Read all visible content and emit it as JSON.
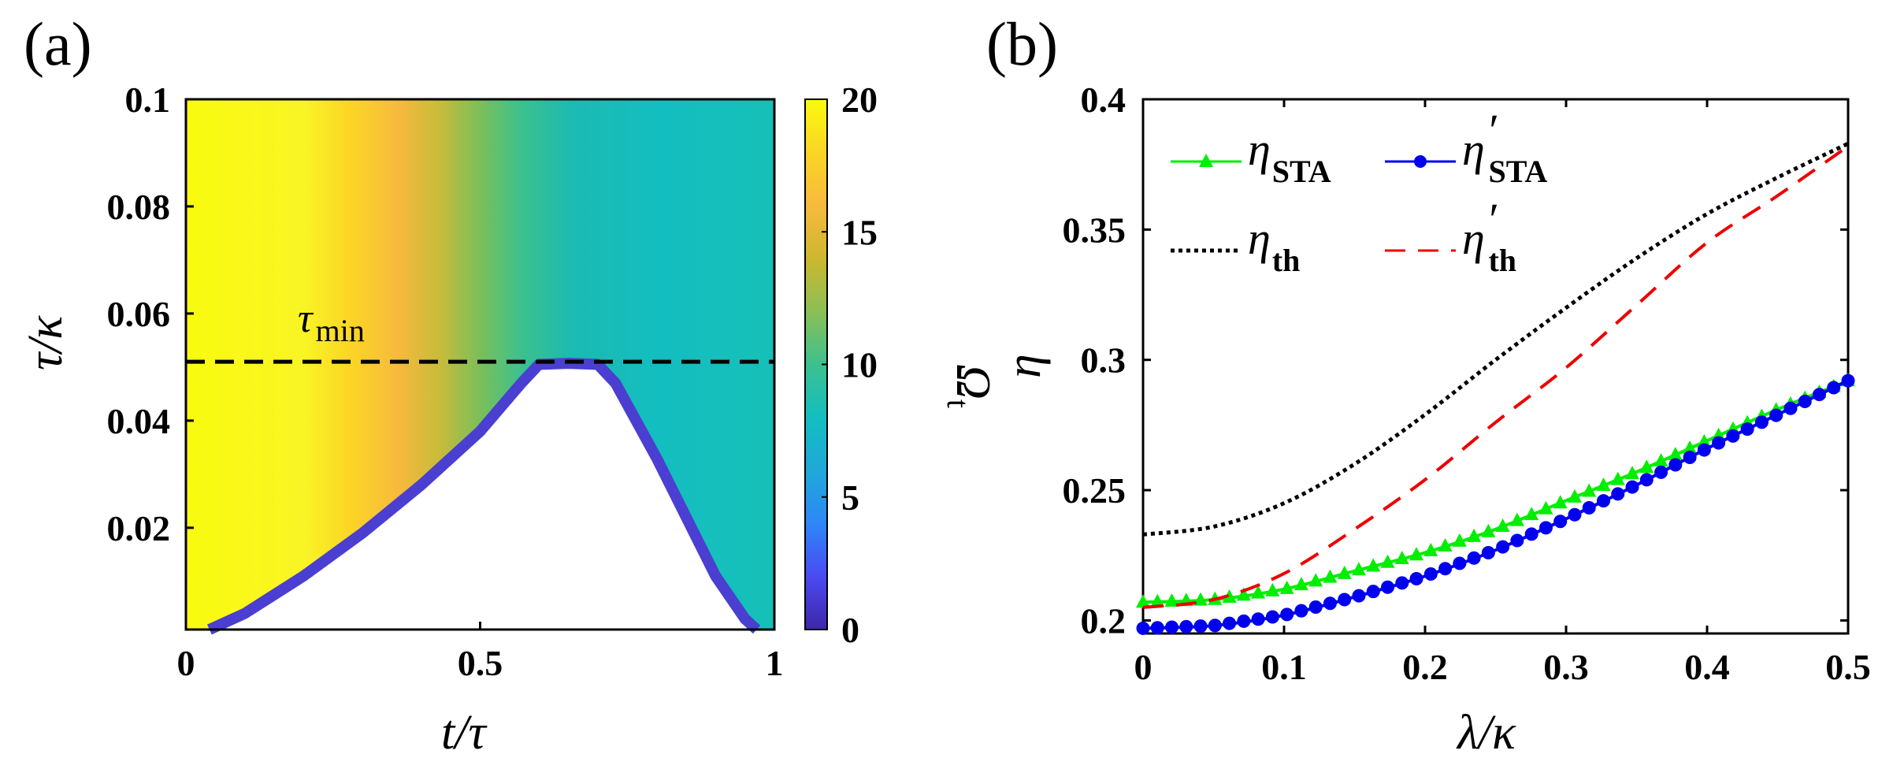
{
  "chart_data": [
    {
      "id": "a",
      "panel_label": "(a)",
      "type": "heatmap",
      "xlabel": "t/τ",
      "ylabel": "τ/κ",
      "xlim": [
        0,
        1
      ],
      "ylim": [
        0.001,
        0.1
      ],
      "xticks": [
        "0",
        "0.5",
        "1"
      ],
      "xtick_values": [
        0,
        0.5,
        1
      ],
      "yticks": [
        "0.02",
        "0.04",
        "0.06",
        "0.08",
        "0.1"
      ],
      "ytick_values": [
        0.02,
        0.04,
        0.06,
        0.08,
        0.1
      ],
      "colorbar": {
        "label": "Ω_t",
        "label_main": "Ω",
        "label_sub": "t",
        "range": [
          0,
          20
        ],
        "ticks": [
          "0",
          "5",
          "10",
          "15",
          "20"
        ],
        "tick_values": [
          0,
          5,
          10,
          15,
          20
        ],
        "colormap": [
          "#3e26a8",
          "#4a4af2",
          "#2e87f7",
          "#1fa8d8",
          "#13bec0",
          "#3cc08e",
          "#8bbf54",
          "#cdb72f",
          "#f7ba3d",
          "#fbd525",
          "#f9fb0e"
        ]
      },
      "feasible_boundary": {
        "t": [
          0.04,
          0.1,
          0.2,
          0.3,
          0.4,
          0.5,
          0.57,
          0.6,
          0.65,
          0.7,
          0.73,
          0.8,
          0.85,
          0.9,
          0.95,
          0.97
        ],
        "tau": [
          0.001,
          0.004,
          0.011,
          0.019,
          0.028,
          0.038,
          0.047,
          0.0505,
          0.0507,
          0.0505,
          0.047,
          0.033,
          0.022,
          0.011,
          0.003,
          0.001
        ]
      },
      "reference_line": {
        "tau": 0.051,
        "label": "τ_min",
        "label_main": "τ",
        "label_sub": "min"
      }
    },
    {
      "id": "b",
      "panel_label": "(b)",
      "type": "line",
      "xlabel": "λ/κ",
      "ylabel": "η",
      "xlim": [
        0,
        0.5
      ],
      "ylim": [
        0.195,
        0.4
      ],
      "xticks": [
        "0",
        "0.1",
        "0.2",
        "0.3",
        "0.4",
        "0.5"
      ],
      "xtick_values": [
        0,
        0.1,
        0.2,
        0.3,
        0.4,
        0.5
      ],
      "yticks": [
        "0.2",
        "0.25",
        "0.3",
        "0.35",
        "0.4"
      ],
      "ytick_values": [
        0.2,
        0.25,
        0.3,
        0.35,
        0.4
      ],
      "series": [
        {
          "name": "η_STA",
          "main": "η",
          "sub": "STA",
          "prime": false,
          "color": "#00ee00",
          "style": "solid",
          "marker": "triangle",
          "x": [
            0,
            0.05,
            0.1,
            0.15,
            0.2,
            0.25,
            0.3,
            0.35,
            0.4,
            0.45,
            0.5
          ],
          "y": [
            0.207,
            0.208,
            0.212,
            0.219,
            0.226,
            0.235,
            0.246,
            0.257,
            0.269,
            0.281,
            0.292
          ]
        },
        {
          "name": "η'_STA",
          "main": "η",
          "sub": "STA",
          "prime": true,
          "color": "#0000ee",
          "style": "solid",
          "marker": "circle",
          "x": [
            0,
            0.05,
            0.1,
            0.15,
            0.2,
            0.25,
            0.3,
            0.35,
            0.4,
            0.45,
            0.5
          ],
          "y": [
            0.197,
            0.198,
            0.202,
            0.209,
            0.217,
            0.227,
            0.239,
            0.252,
            0.266,
            0.279,
            0.292
          ]
        },
        {
          "name": "η_th",
          "main": "η",
          "sub": "th",
          "prime": false,
          "color": "#000000",
          "style": "dotted",
          "marker": "none",
          "x": [
            0,
            0.05,
            0.1,
            0.15,
            0.2,
            0.25,
            0.3,
            0.35,
            0.4,
            0.45,
            0.5
          ],
          "y": [
            0.233,
            0.236,
            0.245,
            0.26,
            0.279,
            0.3,
            0.32,
            0.339,
            0.356,
            0.37,
            0.383
          ]
        },
        {
          "name": "η'_th",
          "main": "η",
          "sub": "th",
          "prime": true,
          "color": "#ee0000",
          "style": "dashed",
          "marker": "none",
          "x": [
            0,
            0.05,
            0.1,
            0.15,
            0.2,
            0.25,
            0.3,
            0.35,
            0.4,
            0.45,
            0.5
          ],
          "y": [
            0.205,
            0.208,
            0.218,
            0.235,
            0.254,
            0.276,
            0.297,
            0.321,
            0.345,
            0.363,
            0.382
          ]
        }
      ]
    }
  ]
}
